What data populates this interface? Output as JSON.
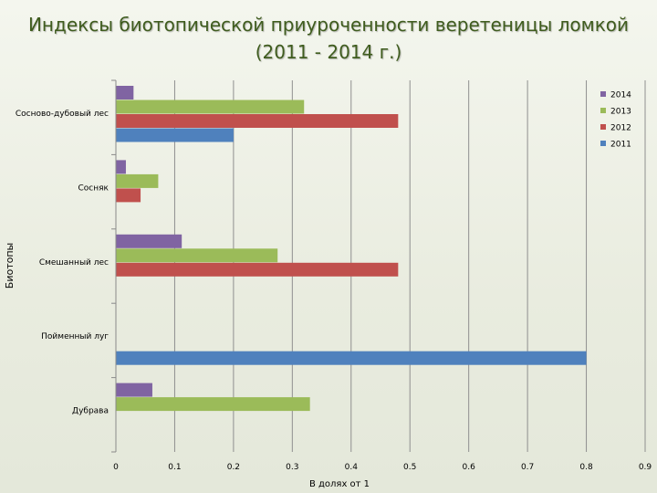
{
  "title": {
    "line1": "Индексы биотопической приуроченности веретеницы ломкой",
    "line2": "(2011 - 2014 г.)"
  },
  "chart_data": {
    "type": "bar",
    "orientation": "horizontal",
    "title": "Индексы биотопической приуроченности веретеницы ломкой (2011 - 2014 г.)",
    "xlabel": "В долях от 1",
    "ylabel": "Биотопы",
    "xlim": [
      0,
      0.9
    ],
    "x_ticks": [
      "0",
      "0.1",
      "0.2",
      "0.3",
      "0.4",
      "0.5",
      "0.6",
      "0.7",
      "0.8",
      "0.9"
    ],
    "categories": [
      "Сосново-дубовый лес",
      "Сосняк",
      "Смешанный лес",
      "Пойменный луг",
      "Дубрава"
    ],
    "series": [
      {
        "name": "2014",
        "color": "#8064a2",
        "values": [
          0.03,
          0.017,
          0.112,
          0,
          0.062
        ]
      },
      {
        "name": "2013",
        "color": "#9bbb59",
        "values": [
          0.32,
          0.072,
          0.275,
          0,
          0.33
        ]
      },
      {
        "name": "2012",
        "color": "#c0504d",
        "values": [
          0.48,
          0.042,
          0.48,
          0,
          0
        ]
      },
      {
        "name": "2011",
        "color": "#4f81bd",
        "values": [
          0.2,
          0,
          0,
          0.8,
          0
        ]
      }
    ],
    "legend_position": "top-right",
    "grid": true
  }
}
